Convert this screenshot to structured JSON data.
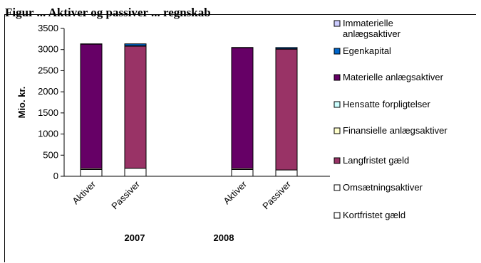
{
  "title_fragment": "Figur ... Aktiver og passiver ... regnskab",
  "chart_data": {
    "type": "bar",
    "stacked": true,
    "ylabel": "Mio. kr.",
    "ylim": [
      0,
      3500
    ],
    "yticks": [
      0,
      500,
      1000,
      1500,
      2000,
      2500,
      3000,
      3500
    ],
    "grid": false,
    "legend_position": "right",
    "groups": [
      {
        "label": "2007",
        "categories": [
          "Aktiver",
          "Passiver"
        ]
      },
      {
        "label": "2008",
        "categories": [
          "Aktiver",
          "Passiver"
        ]
      }
    ],
    "categories": [
      "Aktiver",
      "Passiver",
      "Aktiver",
      "Passiver"
    ],
    "legend": [
      "Immaterielle anlægsaktiver",
      "Egenkapital",
      "Materielle anlægsaktiver",
      "Hensatte forpligtelser",
      "Finansielle anlægsaktiver",
      "Langfristet gæld",
      "Omsætningsaktiver",
      "Kortfristet gæld"
    ],
    "series": [
      {
        "name": "Kortfristet gæld",
        "color": "#ffffff",
        "values": [
          0,
          190,
          0,
          150
        ]
      },
      {
        "name": "Omsætningsaktiver",
        "color": "#ffffff",
        "values": [
          160,
          0,
          160,
          0
        ]
      },
      {
        "name": "Langfristet gæld",
        "color": "#993366",
        "values": [
          0,
          2890,
          0,
          2860
        ]
      },
      {
        "name": "Finansielle anlægsaktiver",
        "color": "#ffffcc",
        "values": [
          25,
          0,
          25,
          0
        ]
      },
      {
        "name": "Hensatte forpligtelser",
        "color": "#ccffff",
        "values": [
          0,
          10,
          0,
          8
        ]
      },
      {
        "name": "Materielle anlægsaktiver",
        "color": "#660066",
        "values": [
          2945,
          0,
          2860,
          0
        ]
      },
      {
        "name": "Egenkapital",
        "color": "#0066cc",
        "values": [
          0,
          45,
          0,
          30
        ]
      },
      {
        "name": "Immaterielle anlægsaktiver",
        "color": "#ccccff",
        "values": [
          5,
          0,
          5,
          0
        ]
      }
    ]
  }
}
